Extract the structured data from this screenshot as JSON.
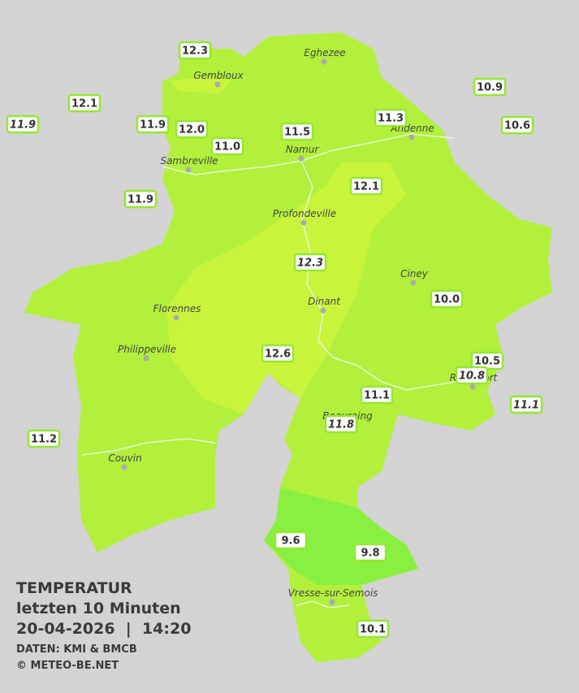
{
  "title": {
    "heading": "TEMPERATUR",
    "period": "letzten 10 Minuten",
    "datetime": "20-04-2026  |  14:20",
    "source": "DATEN: KMI & BMCB",
    "copyright": "© METEO-BE.NET"
  },
  "towns": [
    {
      "name": "Eghezee"
    },
    {
      "name": "Gembloux"
    },
    {
      "name": "Andenne"
    },
    {
      "name": "Namur"
    },
    {
      "name": "Sambreville"
    },
    {
      "name": "Profondeville"
    },
    {
      "name": "Ciney"
    },
    {
      "name": "Dinant"
    },
    {
      "name": "Florennes"
    },
    {
      "name": "Philippeville"
    },
    {
      "name": "Rochefort"
    },
    {
      "name": "Beauraing"
    },
    {
      "name": "Couvin"
    },
    {
      "name": "Vresse-sur-Semois"
    }
  ],
  "readings": [
    {
      "label": "12.3",
      "italic": false
    },
    {
      "label": "12.1",
      "italic": false
    },
    {
      "label": "11.9",
      "italic": true
    },
    {
      "label": "11.9",
      "italic": false
    },
    {
      "label": "12.0",
      "italic": false
    },
    {
      "label": "11.0",
      "italic": false
    },
    {
      "label": "11.5",
      "italic": false
    },
    {
      "label": "11.3",
      "italic": false
    },
    {
      "label": "10.9",
      "italic": false
    },
    {
      "label": "10.6",
      "italic": false
    },
    {
      "label": "11.9",
      "italic": false
    },
    {
      "label": "12.1",
      "italic": false
    },
    {
      "label": "12.3",
      "italic": true
    },
    {
      "label": "10.0",
      "italic": false
    },
    {
      "label": "12.6",
      "italic": false
    },
    {
      "label": "10.5",
      "italic": false
    },
    {
      "label": "10.8",
      "italic": true
    },
    {
      "label": "11.1",
      "italic": false
    },
    {
      "label": "11.8",
      "italic": true
    },
    {
      "label": "11.1",
      "italic": true
    },
    {
      "label": "11.2",
      "italic": false
    },
    {
      "label": "9.6",
      "italic": false
    },
    {
      "label": "9.8",
      "italic": false
    },
    {
      "label": "10.1",
      "italic": false
    }
  ]
}
